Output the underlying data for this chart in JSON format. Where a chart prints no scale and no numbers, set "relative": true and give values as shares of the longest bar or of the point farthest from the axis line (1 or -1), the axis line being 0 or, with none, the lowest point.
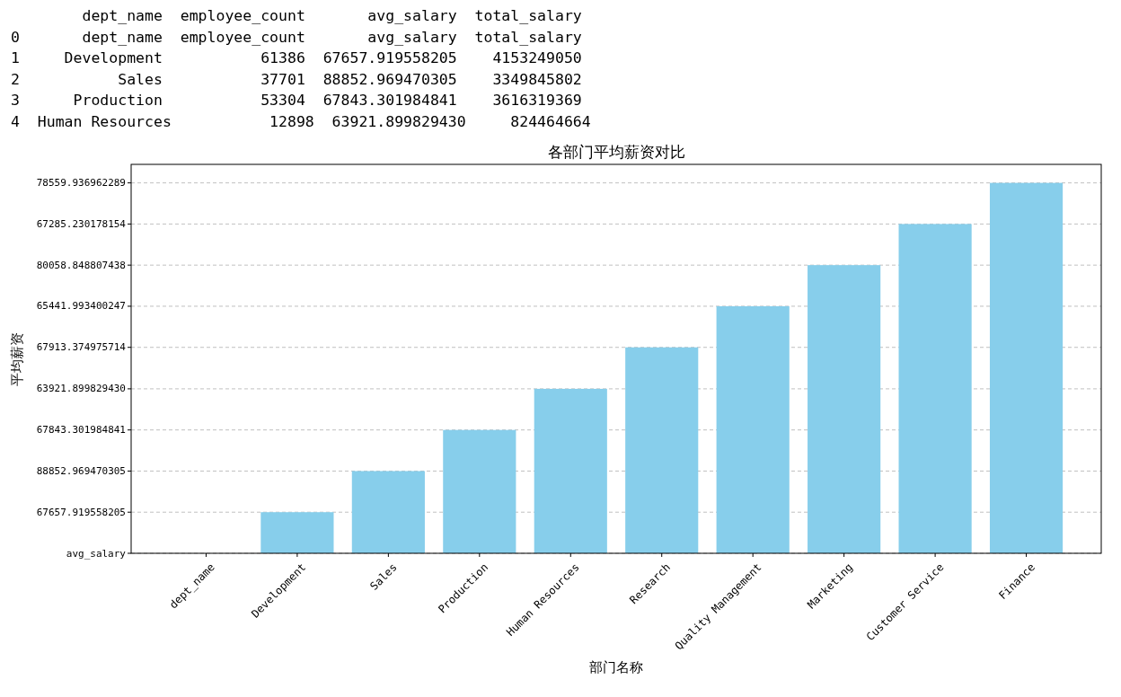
{
  "chart_data": {
    "type": "bar",
    "title": "各部门平均薪资对比",
    "xlabel": "部门名称",
    "categories": [
      "dept_name",
      "Development",
      "Sales",
      "Production",
      "Human Resources",
      "Research",
      "Quality Management",
      "Marketing",
      "Customer Service",
      "Finance"
    ],
    "values": [
      0,
      0.111,
      0.222,
      0.333,
      0.444,
      0.556,
      0.667,
      0.778,
      0.889,
      1
    ],
    "relative": true,
    "color": "#87ceeb",
    "grid": "y",
    "annotations": [
      "        dept_name  employee_count       avg_salary  total_salary",
      "0       dept_name  employee_count       avg_salary  total_salary",
      "1     Development           61386  67657.919558205    4153249050",
      "2           Sales           37701  88852.969470305    3349845802",
      "3      Production           53304  67843.301984841    3616319369",
      "4  Human Resources           12898  63921.899829430     824464664",
      "平均薪资",
      "avg_salary",
      "67657.919558205",
      "88852.969470305",
      "67843.301984841",
      "63921.899829430",
      "67913.374975714",
      "65441.993400247",
      "80058.848807438",
      "67285.230178154",
      "78559.936962289"
    ]
  }
}
